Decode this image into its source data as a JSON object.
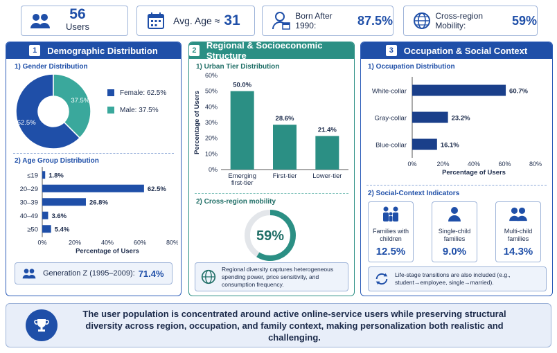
{
  "stats": {
    "users_value": "56",
    "users_label": "Users",
    "avg_age_label": "Avg. Age ≈",
    "avg_age_value": "31",
    "born_after_label": "Born After 1990:",
    "born_after_value": "87.5%",
    "mobility_label": "Cross-region Mobility:",
    "mobility_value": "59%"
  },
  "panel1": {
    "num": "1",
    "title": "Demographic Distribution",
    "gender_title": "1) Gender Distribution",
    "gender_legend": [
      "Female: 62.5%",
      "Male: 37.5%"
    ],
    "age_title": "2) Age Group Distribution",
    "age_xlabel": "Percentage of Users",
    "genz_label": "Generation Z (1995–2009):",
    "genz_value": "71.4%"
  },
  "panel2": {
    "num": "2",
    "title": "Regional & Socioeconomic Structure",
    "urban_title": "1) Urban Tier Distribution",
    "urban_ylabel": "Percentage of Users",
    "mobility_title": "2) Cross-region mobility",
    "mobility_pct": "59%",
    "note": "Regional diversity captures heterogeneous spending power, price sensitivity, and consumption frequency."
  },
  "panel3": {
    "num": "3",
    "title": "Occupation & Social Context",
    "occ_title": "1) Occupation Distribution",
    "occ_xlabel": "Percentage of Users",
    "social_title": "2) Social-Context Indicators",
    "indicators": [
      {
        "label": "Families with children",
        "value": "12.5%",
        "icon": "family-icon"
      },
      {
        "label": "Single-child families",
        "value": "9.0%",
        "icon": "single-child-icon"
      },
      {
        "label": "Multi-child families",
        "value": "14.3%",
        "icon": "multi-child-icon"
      }
    ],
    "transition_note": "Life-stage transitions are also included (e.g., student→employee, single→married)."
  },
  "footer": {
    "text": "The user population is concentrated around active online-service users while preserving structural diversity across region, occupation, and family context, making personalization both realistic and challenging."
  },
  "colors": {
    "blue": "#1f4fa8",
    "teal": "#2b8f84",
    "light_teal": "#3aa89c"
  },
  "chart_data": [
    {
      "type": "pie",
      "title": "1) Gender Distribution",
      "categories": [
        "Female",
        "Male"
      ],
      "values": [
        62.5,
        37.5
      ],
      "labels": [
        "62.5%",
        "37.5%"
      ],
      "colors": [
        "#1f4fa8",
        "#3aa89c"
      ],
      "legend": "right"
    },
    {
      "type": "bar",
      "orientation": "horizontal",
      "title": "2) Age Group Distribution",
      "categories": [
        "≤19",
        "20–29",
        "30–39",
        "40–49",
        "≥50"
      ],
      "values": [
        1.8,
        62.5,
        26.8,
        3.6,
        5.4
      ],
      "labels": [
        "1.8%",
        "62.5%",
        "26.8%",
        "3.6%",
        "5.4%"
      ],
      "xlabel": "Percentage of Users",
      "xlim": [
        0,
        80
      ],
      "ticks": [
        "0%",
        "20%",
        "40%",
        "60%",
        "80%"
      ]
    },
    {
      "type": "bar",
      "title": "1) Urban Tier Distribution",
      "categories": [
        "Emerging first-tier",
        "First-tier",
        "Lower-tier"
      ],
      "values": [
        50.0,
        28.6,
        21.4
      ],
      "labels": [
        "50.0%",
        "28.6%",
        "21.4%"
      ],
      "ylabel": "Percentage of Users",
      "ylim": [
        0,
        60
      ],
      "ticks": [
        "0%",
        "10%",
        "20%",
        "30%",
        "40%",
        "50%",
        "60%"
      ]
    },
    {
      "type": "pie",
      "title": "2) Cross-region mobility",
      "values": [
        59
      ],
      "label": "59%"
    },
    {
      "type": "bar",
      "orientation": "horizontal",
      "title": "1) Occupation Distribution",
      "categories": [
        "White-collar",
        "Gray-collar",
        "Blue-collar"
      ],
      "values": [
        60.7,
        23.2,
        16.1
      ],
      "labels": [
        "60.7%",
        "23.2%",
        "16.1%"
      ],
      "xlabel": "Percentage of Users",
      "xlim": [
        0,
        80
      ],
      "ticks": [
        "0%",
        "20%",
        "40%",
        "60%",
        "80%"
      ]
    }
  ]
}
